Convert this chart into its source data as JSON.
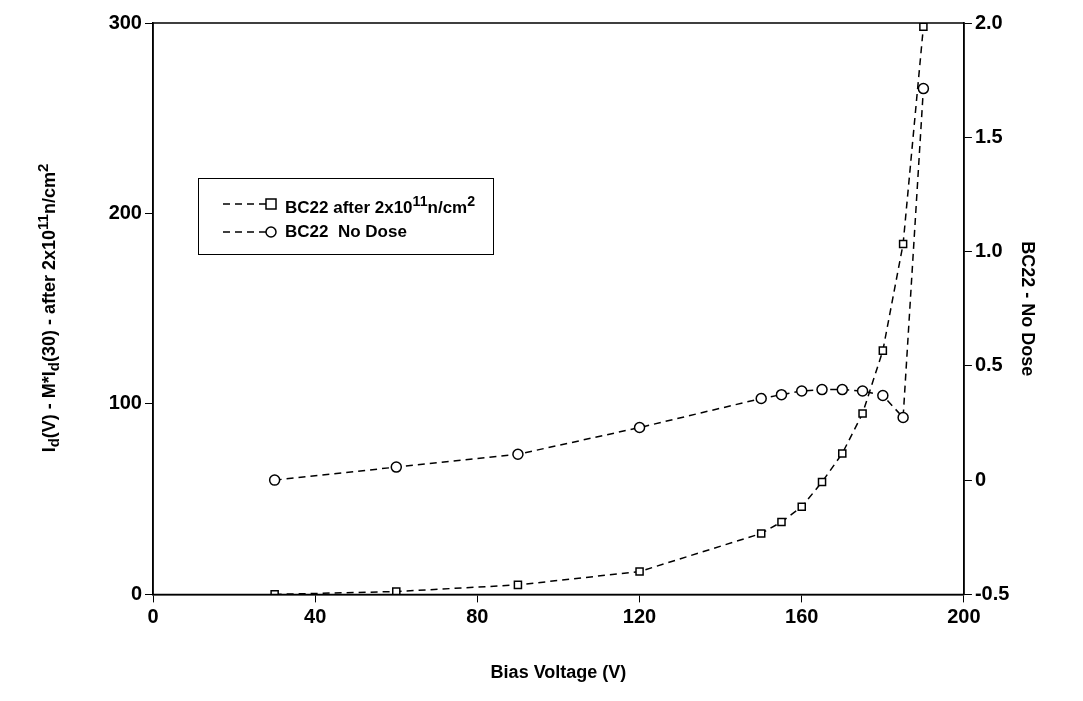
{
  "chart_data": {
    "type": "line",
    "xlabel": "Bias Voltage (V)",
    "ylabel": "I$_{d}$(V) - M*I$_{d}$(30) - after 2x10$^{11}$n/cm$^{2}$",
    "y2label": "BC22 - No Dose",
    "x": [
      30,
      60,
      90,
      120,
      150,
      155,
      160,
      165,
      170,
      175,
      180,
      185,
      190
    ],
    "series": [
      {
        "name": "BC22 after 2x10$^{11}$n/cm$^{2}$",
        "color": "#000000",
        "marker": "square",
        "line_style": "dashed",
        "values": [
          0,
          1.5,
          5,
          12,
          32,
          38,
          46,
          59,
          74,
          95,
          128,
          184,
          298
        ]
      },
      {
        "name": "BC22  No Dose",
        "color": "#000000",
        "marker": "circle",
        "line_style": "dashed",
        "axis": "y2",
        "values": [
          0,
          0.057,
          0.113,
          0.23,
          0.357,
          0.374,
          0.39,
          0.396,
          0.396,
          0.39,
          0.37,
          0.274,
          1.713
        ]
      }
    ],
    "xlim": [
      0,
      200
    ],
    "xticks": [
      0,
      40,
      80,
      120,
      160,
      200
    ],
    "ylim": [
      0,
      300
    ],
    "yticks": [
      0,
      100,
      200,
      300
    ],
    "y2lim": [
      -0.5,
      2.0
    ],
    "y2ticks": [
      -0.5,
      0,
      0.5,
      {
        "value": 1,
        "label": "1.0"
      },
      1.5,
      {
        "value": 2,
        "label": "2.0"
      }
    ],
    "grid": false,
    "legend": "top left"
  }
}
